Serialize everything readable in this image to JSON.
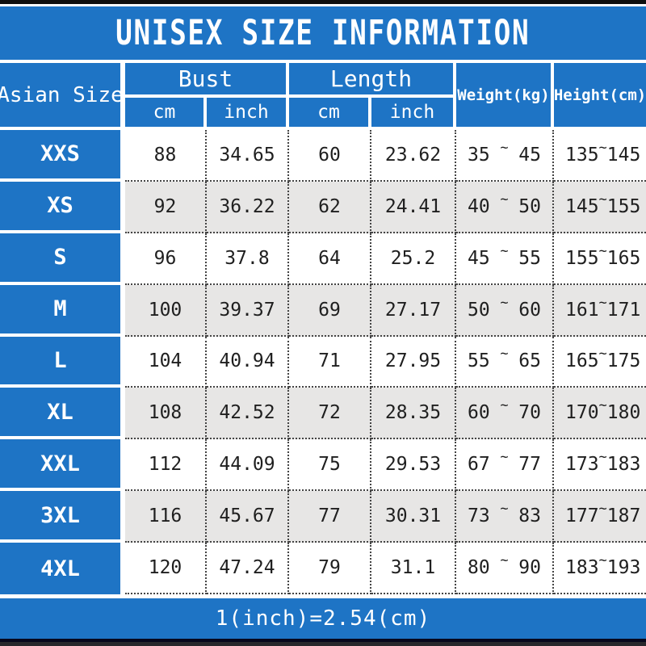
{
  "title": "UNISEX SIZE INFORMATION",
  "conversion_note": "1(inch)=2.54(cm)",
  "colors": {
    "accent_blue": "#1e74c5",
    "alt_row_gray": "#e7e6e5",
    "top_bar_black": "#0e0e0e"
  },
  "table": {
    "size_header": "Asian Size",
    "bust_header": "Bust",
    "length_header": "Length",
    "weight_header": "Weight(kg)",
    "height_header": "Height(cm)",
    "units": {
      "bust": [
        "cm",
        "inch"
      ],
      "length": [
        "cm",
        "inch"
      ]
    },
    "range_separator": "~",
    "rows": [
      {
        "size": "XXS",
        "bust_cm": "88",
        "bust_inch": "34.65",
        "length_cm": "60",
        "length_inch": "23.62",
        "weight_min": "35",
        "weight_max": "45",
        "height_min": "135",
        "height_max": "145"
      },
      {
        "size": "XS",
        "bust_cm": "92",
        "bust_inch": "36.22",
        "length_cm": "62",
        "length_inch": "24.41",
        "weight_min": "40",
        "weight_max": "50",
        "height_min": "145",
        "height_max": "155"
      },
      {
        "size": "S",
        "bust_cm": "96",
        "bust_inch": "37.8",
        "length_cm": "64",
        "length_inch": "25.2",
        "weight_min": "45",
        "weight_max": "55",
        "height_min": "155",
        "height_max": "165"
      },
      {
        "size": "M",
        "bust_cm": "100",
        "bust_inch": "39.37",
        "length_cm": "69",
        "length_inch": "27.17",
        "weight_min": "50",
        "weight_max": "60",
        "height_min": "161",
        "height_max": "171"
      },
      {
        "size": "L",
        "bust_cm": "104",
        "bust_inch": "40.94",
        "length_cm": "71",
        "length_inch": "27.95",
        "weight_min": "55",
        "weight_max": "65",
        "height_min": "165",
        "height_max": "175"
      },
      {
        "size": "XL",
        "bust_cm": "108",
        "bust_inch": "42.52",
        "length_cm": "72",
        "length_inch": "28.35",
        "weight_min": "60",
        "weight_max": "70",
        "height_min": "170",
        "height_max": "180"
      },
      {
        "size": "XXL",
        "bust_cm": "112",
        "bust_inch": "44.09",
        "length_cm": "75",
        "length_inch": "29.53",
        "weight_min": "67",
        "weight_max": "77",
        "height_min": "173",
        "height_max": "183"
      },
      {
        "size": "3XL",
        "bust_cm": "116",
        "bust_inch": "45.67",
        "length_cm": "77",
        "length_inch": "30.31",
        "weight_min": "73",
        "weight_max": "83",
        "height_min": "177",
        "height_max": "187"
      },
      {
        "size": "4XL",
        "bust_cm": "120",
        "bust_inch": "47.24",
        "length_cm": "79",
        "length_inch": "31.1",
        "weight_min": "80",
        "weight_max": "90",
        "height_min": "183",
        "height_max": "193"
      }
    ]
  }
}
